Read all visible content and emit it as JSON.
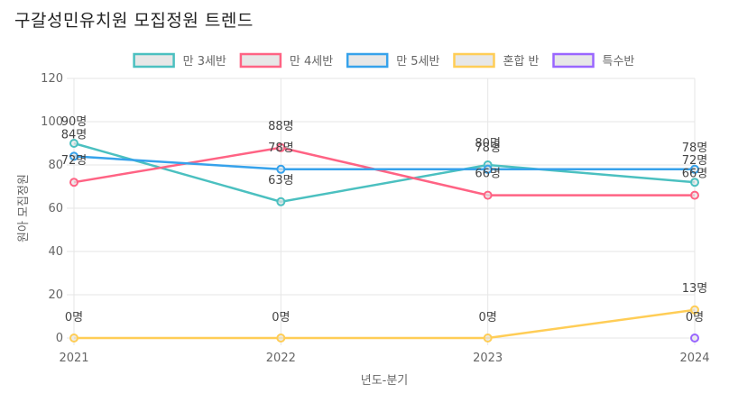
{
  "chart_data": {
    "type": "line",
    "title": "구갈성민유치원 모집정원 트렌드",
    "xlabel": "년도-분기",
    "ylabel": "원아 모집정원",
    "categories": [
      "2021",
      "2022",
      "2023",
      "2024"
    ],
    "ylim": [
      0,
      120
    ],
    "yticks": [
      0,
      20,
      40,
      60,
      80,
      100,
      120
    ],
    "grid": true,
    "legend_position": "top-center",
    "value_suffix": "명",
    "series": [
      {
        "name": "만 3세반",
        "color": "#4bc0c0",
        "values": [
          90,
          63,
          80,
          72
        ]
      },
      {
        "name": "만 4세반",
        "color": "#ff6384",
        "values": [
          72,
          88,
          66,
          66
        ]
      },
      {
        "name": "만 5세반",
        "color": "#36a2eb",
        "values": [
          84,
          78,
          78,
          78
        ]
      },
      {
        "name": "혼합 반",
        "color": "#ffcd56",
        "values": [
          0,
          0,
          0,
          13
        ]
      },
      {
        "name": "특수반",
        "color": "#9966ff",
        "values": [
          null,
          null,
          null,
          0
        ]
      }
    ]
  }
}
